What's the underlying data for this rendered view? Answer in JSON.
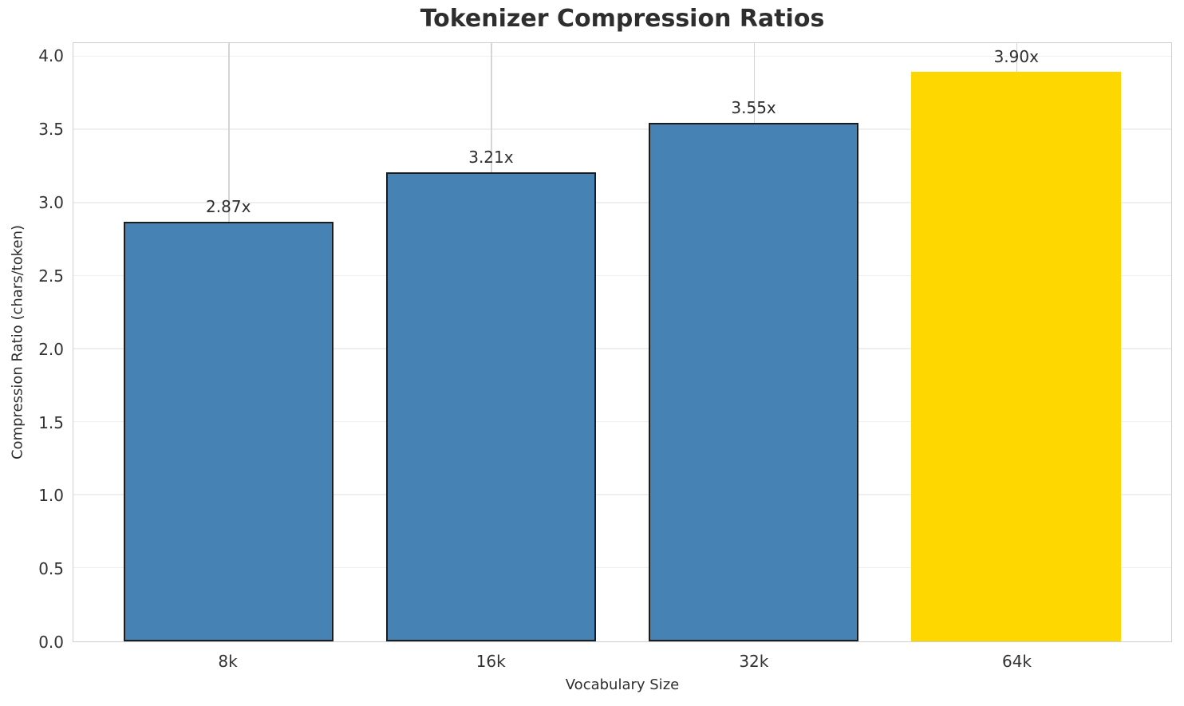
{
  "chart_data": {
    "type": "bar",
    "title": "Tokenizer Compression Ratios",
    "xlabel": "Vocabulary Size",
    "ylabel": "Compression Ratio (chars/token)",
    "categories": [
      "8k",
      "16k",
      "32k",
      "64k"
    ],
    "values": [
      2.87,
      3.21,
      3.55,
      3.9
    ],
    "bar_labels": [
      "2.87x",
      "3.21x",
      "3.55x",
      "3.90x"
    ],
    "bar_colors": [
      "#4682b4",
      "#4682b4",
      "#4682b4",
      "#ffd700"
    ],
    "bar_edge_colors": [
      "#1c1c1c",
      "#1c1c1c",
      "#1c1c1c",
      "none"
    ],
    "highlight_index": 3,
    "ylim": [
      0,
      4.095
    ],
    "xlim": [
      -0.59,
      3.59
    ],
    "bar_width": 0.8,
    "yticks": [
      0.0,
      0.5,
      1.0,
      1.5,
      2.0,
      2.5,
      3.0,
      3.5,
      4.0
    ],
    "ytick_labels": [
      "0.0",
      "0.5",
      "1.0",
      "1.5",
      "2.0",
      "2.5",
      "3.0",
      "3.5",
      "4.0"
    ],
    "grid": true,
    "legend_position": "none"
  },
  "colors": {
    "bar_blue": "#4682b4",
    "bar_gold": "#ffd700",
    "bar_edge": "#1c1c1c",
    "grid_horizontal": "#efefef",
    "grid_vertical": "#d5d5d5",
    "spine": "#cfcfcf",
    "text": "#2e2e2e",
    "background": "#ffffff"
  }
}
